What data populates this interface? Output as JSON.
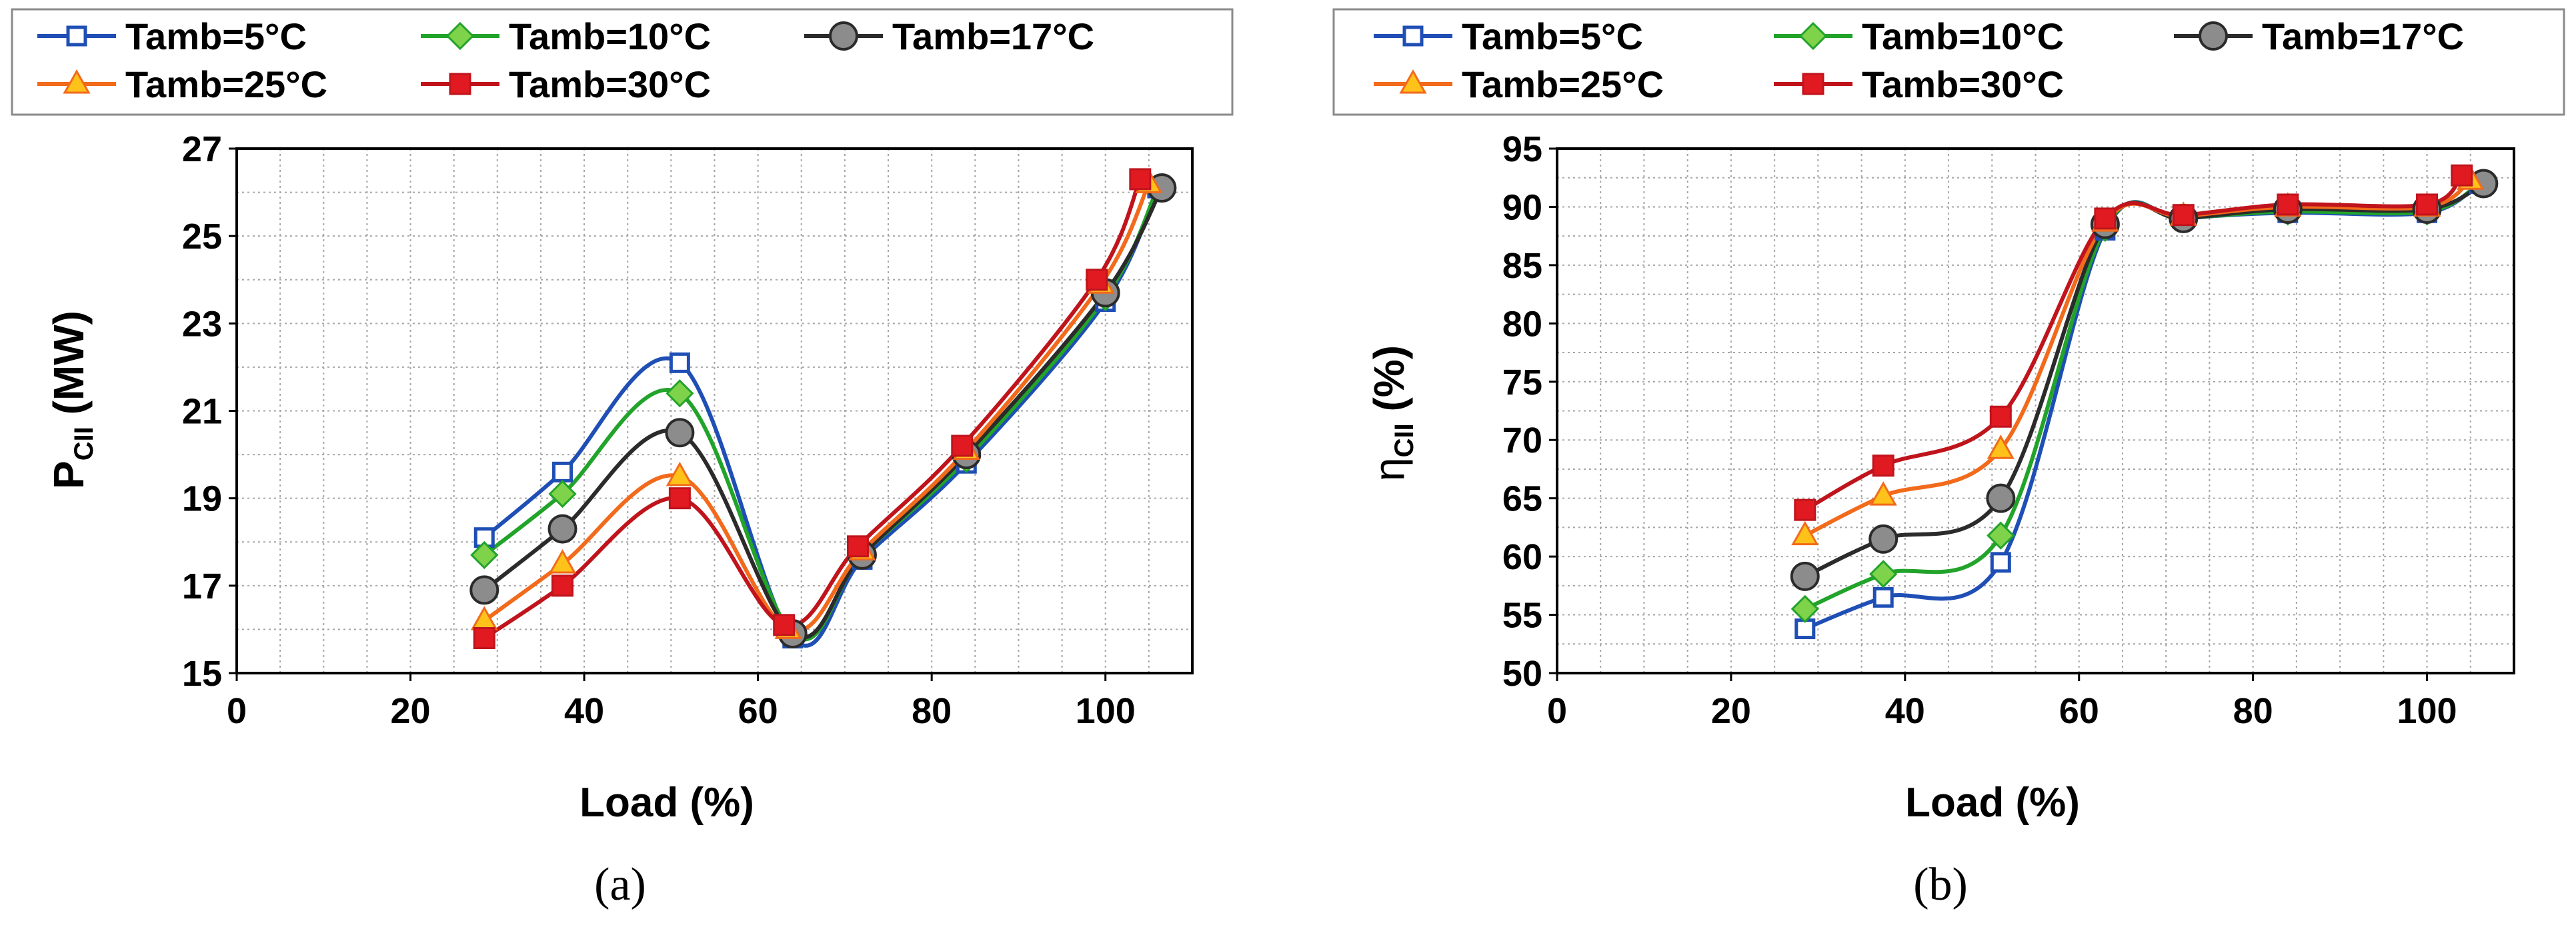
{
  "legend": [
    {
      "name": "Tamb=5°C",
      "color": "#1f4fb5",
      "marker": "square-open"
    },
    {
      "name": "Tamb=10°C",
      "color": "#22a32a",
      "marker": "diamond"
    },
    {
      "name": "Tamb=17°C",
      "color": "#2b2b2b",
      "marker": "circle-gray"
    },
    {
      "name": "Tamb=25°C",
      "color": "#f26a1b",
      "marker": "triangle"
    },
    {
      "name": "Tamb=30°C",
      "color": "#c0141c",
      "marker": "square-filled"
    }
  ],
  "chart_data": [
    {
      "type": "line",
      "panel_caption": "(a)",
      "xlabel": "Load (%)",
      "ylabel_main": "P",
      "ylabel_sub": "CII",
      "ylabel_unit": " (MW)",
      "xlim": [
        0,
        110
      ],
      "ylim": [
        15,
        27
      ],
      "xticks": [
        0,
        20,
        40,
        60,
        80,
        100
      ],
      "yticks": [
        15,
        17,
        19,
        21,
        23,
        25,
        27
      ],
      "legend_position": "top",
      "grid": true,
      "series": [
        {
          "name": "Tamb=5°C",
          "points": [
            [
              28.5,
              18.1
            ],
            [
              37.5,
              19.6
            ],
            [
              51,
              22.1
            ],
            [
              64,
              15.8
            ],
            [
              72,
              17.6
            ],
            [
              84,
              19.8
            ],
            [
              100,
              23.5
            ],
            [
              106,
              26.1
            ]
          ]
        },
        {
          "name": "Tamb=10°C",
          "points": [
            [
              28.5,
              17.7
            ],
            [
              37.5,
              19.1
            ],
            [
              51,
              21.4
            ],
            [
              64,
              15.9
            ],
            [
              72,
              17.7
            ],
            [
              84,
              19.9
            ],
            [
              100,
              23.6
            ],
            [
              106,
              26.1
            ]
          ]
        },
        {
          "name": "Tamb=17°C",
          "points": [
            [
              28.5,
              16.9
            ],
            [
              37.5,
              18.3
            ],
            [
              51,
              20.5
            ],
            [
              64,
              15.9
            ],
            [
              72,
              17.7
            ],
            [
              84,
              20.0
            ],
            [
              100,
              23.7
            ],
            [
              106.5,
              26.1
            ]
          ]
        },
        {
          "name": "Tamb=25°C",
          "points": [
            [
              28.5,
              16.2
            ],
            [
              37.5,
              17.5
            ],
            [
              51,
              19.5
            ],
            [
              63.5,
              16.0
            ],
            [
              72,
              17.8
            ],
            [
              84,
              20.1
            ],
            [
              99.5,
              23.9
            ],
            [
              105,
              26.2
            ]
          ]
        },
        {
          "name": "Tamb=30°C",
          "points": [
            [
              28.5,
              15.8
            ],
            [
              37.5,
              17.0
            ],
            [
              51,
              19.0
            ],
            [
              63,
              16.1
            ],
            [
              71.5,
              17.9
            ],
            [
              83.5,
              20.2
            ],
            [
              99,
              24.0
            ],
            [
              104,
              26.3
            ]
          ]
        }
      ]
    },
    {
      "type": "line",
      "panel_caption": "(b)",
      "xlabel": "Load (%)",
      "ylabel_main": "η",
      "ylabel_sub": "CII",
      "ylabel_unit": " (%)",
      "xlim": [
        0,
        110
      ],
      "ylim": [
        50,
        95
      ],
      "xticks": [
        0,
        20,
        40,
        60,
        80,
        100
      ],
      "yticks": [
        50,
        55,
        60,
        65,
        70,
        75,
        80,
        85,
        90,
        95
      ],
      "legend_position": "top",
      "grid": true,
      "series": [
        {
          "name": "Tamb=5°C",
          "points": [
            [
              28.5,
              53.8
            ],
            [
              37.5,
              56.5
            ],
            [
              51,
              59.5
            ],
            [
              63,
              88.0
            ],
            [
              72,
              89.0
            ],
            [
              84,
              89.5
            ],
            [
              100,
              89.5
            ],
            [
              106,
              92.0
            ]
          ]
        },
        {
          "name": "Tamb=10°C",
          "points": [
            [
              28.5,
              55.5
            ],
            [
              37.5,
              58.5
            ],
            [
              51,
              61.8
            ],
            [
              63,
              88.2
            ],
            [
              72,
              89.0
            ],
            [
              84,
              89.6
            ],
            [
              100,
              89.6
            ],
            [
              106,
              92.0
            ]
          ]
        },
        {
          "name": "Tamb=17°C",
          "points": [
            [
              28.5,
              58.3
            ],
            [
              37.5,
              61.5
            ],
            [
              51,
              65.0
            ],
            [
              63,
              88.5
            ],
            [
              72,
              89.0
            ],
            [
              84,
              89.8
            ],
            [
              100,
              89.8
            ],
            [
              106.5,
              92.0
            ]
          ]
        },
        {
          "name": "Tamb=25°C",
          "points": [
            [
              28.5,
              61.8
            ],
            [
              37.5,
              65.2
            ],
            [
              51,
              69.2
            ],
            [
              63,
              88.7
            ],
            [
              72,
              89.2
            ],
            [
              84,
              90.0
            ],
            [
              100,
              90.0
            ],
            [
              105,
              92.3
            ]
          ]
        },
        {
          "name": "Tamb=30°C",
          "points": [
            [
              28.5,
              64.0
            ],
            [
              37.5,
              67.8
            ],
            [
              51,
              72.0
            ],
            [
              63,
              89.0
            ],
            [
              72,
              89.3
            ],
            [
              84,
              90.2
            ],
            [
              100,
              90.2
            ],
            [
              104,
              92.7
            ]
          ]
        }
      ]
    }
  ]
}
